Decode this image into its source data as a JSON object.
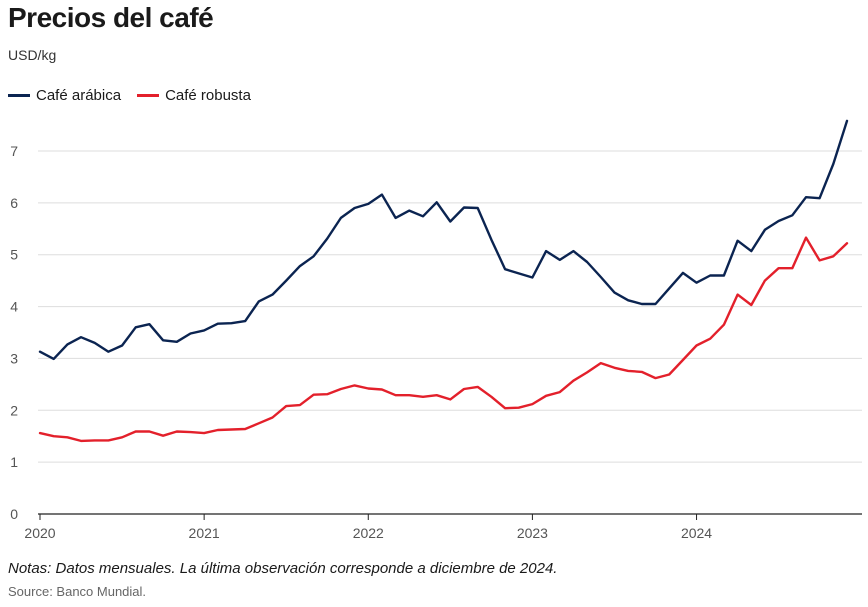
{
  "chart_data": {
    "type": "line",
    "title": "Precios del café",
    "ylabel": "USD/kg",
    "xlabel": "",
    "ylim": [
      0,
      7
    ],
    "yticks": [
      0,
      1,
      2,
      3,
      4,
      5,
      6,
      7
    ],
    "xticks": [
      {
        "label": "2020",
        "index": 0
      },
      {
        "label": "2021",
        "index": 12
      },
      {
        "label": "2022",
        "index": 24
      },
      {
        "label": "2023",
        "index": 36
      },
      {
        "label": "2024",
        "index": 48
      }
    ],
    "x_start": "2020-01",
    "x_end": "2024-12",
    "legend": "top-left",
    "series": [
      {
        "name": "Café arábica",
        "color": "#0b2451",
        "values": [
          3.13,
          2.99,
          3.27,
          3.41,
          3.3,
          3.13,
          3.25,
          3.6,
          3.66,
          3.35,
          3.32,
          3.48,
          3.54,
          3.67,
          3.68,
          3.72,
          4.1,
          4.23,
          4.5,
          4.78,
          4.97,
          5.31,
          5.71,
          5.9,
          5.98,
          6.16,
          5.71,
          5.85,
          5.74,
          6.01,
          5.64,
          5.91,
          5.9,
          5.29,
          4.72,
          4.64,
          4.56,
          5.07,
          4.9,
          5.07,
          4.86,
          4.57,
          4.27,
          4.12,
          4.05,
          4.05,
          4.35,
          4.65,
          4.46,
          4.6,
          4.6,
          5.27,
          5.07,
          5.48,
          5.65,
          5.76,
          6.11,
          6.09,
          6.75,
          7.58
        ]
      },
      {
        "name": "Café robusta",
        "color": "#e3202b",
        "values": [
          1.56,
          1.5,
          1.48,
          1.41,
          1.42,
          1.42,
          1.48,
          1.59,
          1.59,
          1.51,
          1.59,
          1.58,
          1.56,
          1.62,
          1.63,
          1.64,
          1.75,
          1.86,
          2.08,
          2.1,
          2.3,
          2.31,
          2.41,
          2.48,
          2.42,
          2.4,
          2.29,
          2.29,
          2.26,
          2.29,
          2.21,
          2.41,
          2.45,
          2.26,
          2.04,
          2.05,
          2.12,
          2.28,
          2.35,
          2.57,
          2.73,
          2.91,
          2.82,
          2.76,
          2.74,
          2.62,
          2.69,
          2.97,
          3.25,
          3.38,
          3.65,
          4.23,
          4.03,
          4.5,
          4.74,
          4.74,
          5.33,
          4.89,
          4.97,
          5.22
        ]
      }
    ]
  },
  "notes": "Notas: Datos mensuales. La última observación corresponde a diciembre de 2024.",
  "source": "Source: Banco Mundial."
}
